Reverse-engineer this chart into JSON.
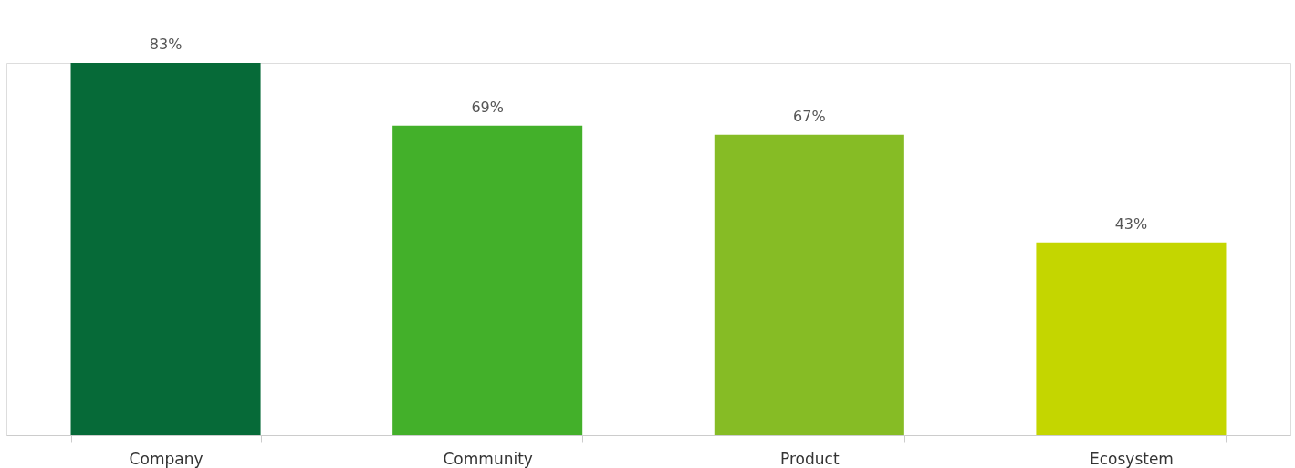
{
  "chart_data": {
    "type": "bar",
    "categories": [
      "Company",
      "Community",
      "Product",
      "Ecosystem"
    ],
    "values": [
      83,
      69,
      67,
      43
    ],
    "colors": [
      "#066a38",
      "#43b02a",
      "#86bc25",
      "#c4d600"
    ],
    "value_labels": [
      "83%",
      "69%",
      "67%",
      "43%"
    ],
    "grid": false
  }
}
